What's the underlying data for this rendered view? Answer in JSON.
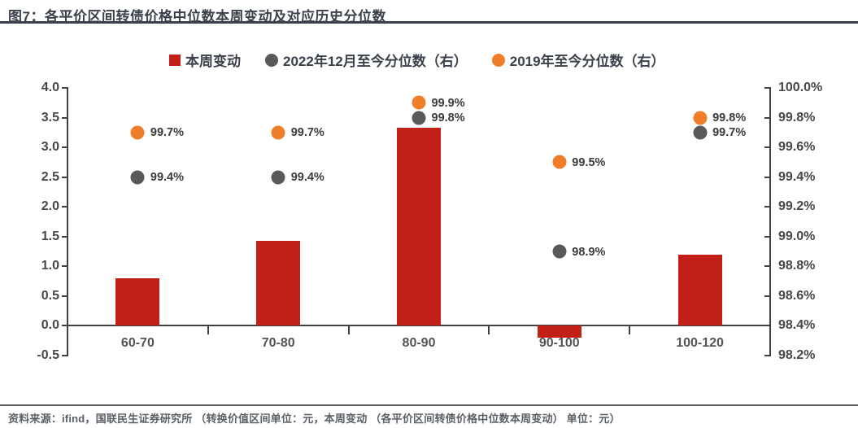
{
  "header": {
    "title": "图7：各平价区间转债价格中位数本周变动及对应历史分位数"
  },
  "legend": [
    {
      "label": "本周变动",
      "marker": "square",
      "color": "#C02016"
    },
    {
      "label": "2022年12月至今分位数（右）",
      "marker": "circle",
      "color": "#595959"
    },
    {
      "label": "2019年至今分位数（右）",
      "marker": "circle",
      "color": "#F07D28"
    }
  ],
  "footer": {
    "source": "资料来源：ifind，国联民生证券研究所 （转换价值区间单位：元，本周变动 （各平价区间转债价格中位数本周变动） 单位：元）"
  },
  "colors": {
    "bar_red": "#C02016",
    "dot_gray": "#595959",
    "dot_orange": "#F07D28",
    "axis": "#404040",
    "title_dark": "#3A414B"
  },
  "chart_data": {
    "type": "bar",
    "title": "各平价区间转债价格中位数本周变动及对应历史分位数",
    "categories": [
      "60-70",
      "70-80",
      "80-90",
      "90-100",
      "100-120"
    ],
    "series": [
      {
        "name": "本周变动",
        "type": "bar",
        "axis": "left",
        "color": "#C02016",
        "values": [
          0.8,
          1.43,
          3.33,
          -0.2,
          1.2
        ]
      },
      {
        "name": "2022年12月至今分位数（右）",
        "type": "scatter",
        "axis": "right",
        "color": "#595959",
        "values": [
          99.4,
          99.4,
          99.8,
          98.9,
          99.7
        ],
        "labels": [
          "99.4%",
          "99.4%",
          "99.8%",
          "98.9%",
          "99.7%"
        ]
      },
      {
        "name": "2019年至今分位数（右）",
        "type": "scatter",
        "axis": "right",
        "color": "#F07D28",
        "values": [
          99.7,
          99.7,
          99.9,
          99.5,
          99.8
        ],
        "labels": [
          "99.7%",
          "99.7%",
          "99.9%",
          "99.5%",
          "99.8%"
        ]
      }
    ],
    "left_axis": {
      "min": -0.5,
      "max": 4.0,
      "step": 0.5,
      "tick_labels": [
        "4.0",
        "3.5",
        "3.0",
        "2.5",
        "2.0",
        "1.5",
        "1.0",
        "0.5",
        "0.0",
        "-0.5"
      ]
    },
    "right_axis": {
      "min": 98.2,
      "max": 100.0,
      "step": 0.2,
      "tick_labels": [
        "100.0%",
        "99.8%",
        "99.6%",
        "99.4%",
        "99.2%",
        "99.0%",
        "98.8%",
        "98.6%",
        "98.4%",
        "98.2%"
      ]
    },
    "grid": false,
    "legend_position": "top",
    "xlabel": "",
    "ylabel_left": "",
    "ylabel_right": ""
  }
}
